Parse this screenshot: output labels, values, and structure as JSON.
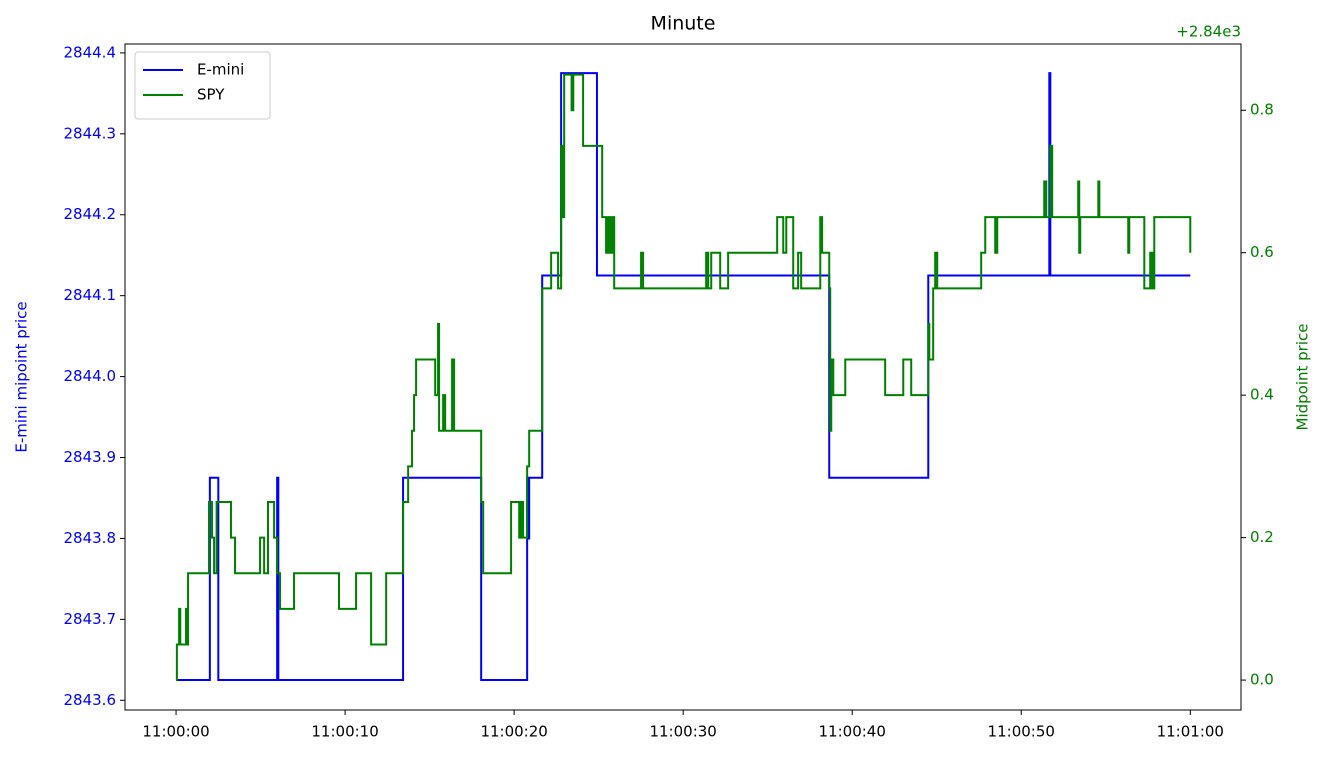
{
  "chart_data": {
    "type": "step",
    "title": "Minute",
    "ylabel": "E-mini mipoint price",
    "y2label": "Midpoint price",
    "y2_offset_text": "+2.84e3",
    "xlim": [
      -3.02,
      63.0
    ],
    "xticks": [
      {
        "value": 0,
        "label": "11:00:00"
      },
      {
        "value": 10,
        "label": "11:00:10"
      },
      {
        "value": 20,
        "label": "11:00:20"
      },
      {
        "value": 30,
        "label": "11:00:30"
      },
      {
        "value": 40,
        "label": "11:00:40"
      },
      {
        "value": 50,
        "label": "11:00:50"
      },
      {
        "value": 60,
        "label": "11:01:00"
      }
    ],
    "ylim": [
      2843.588,
      2844.411
    ],
    "yticks": [
      2843.6,
      2843.7,
      2843.8,
      2843.9,
      {
        "value": 2844.0,
        "label": "2844.0"
      },
      2844.1,
      2844.2,
      2844.3,
      2844.4
    ],
    "y2lim": [
      -0.042,
      0.893
    ],
    "y2ticks": [
      {
        "value": 0,
        "label": "0.0"
      },
      0.2,
      0.4,
      0.6,
      0.8
    ],
    "legend": "upper left",
    "series": [
      {
        "name": "E-mini",
        "color": "#0000ff",
        "axis": "y",
        "x": [
          0,
          2.0,
          2.5,
          5.98,
          6.05,
          13.43,
          18.05,
          20.77,
          20.83,
          20.89,
          21.66,
          22.78,
          24.9,
          38.64,
          44.5,
          51.66,
          51.72,
          60
        ],
        "values": [
          2843.625,
          2843.875,
          2843.625,
          2843.875,
          2843.625,
          2843.875,
          2843.625,
          2843.875,
          2843.8,
          2843.875,
          2844.125,
          2844.375,
          2844.125,
          2843.875,
          2844.125,
          2844.375,
          2844.125,
          2844.125
        ]
      },
      {
        "name": "SPY",
        "color": "#008000",
        "axis": "y2",
        "x": [
          0,
          0.05,
          0.18,
          0.25,
          0.59,
          0.65,
          0.71,
          1.95,
          2.13,
          2.25,
          2.4,
          3.25,
          3.49,
          4.97,
          5.21,
          5.44,
          5.8,
          5.98,
          6.15,
          6.98,
          9.64,
          10.65,
          11.54,
          12.43,
          13.43,
          13.73,
          13.96,
          14.08,
          14.2,
          15.33,
          15.5,
          15.56,
          15.8,
          15.92,
          16.33,
          16.45,
          18.05,
          18.17,
          19.82,
          20.3,
          20.41,
          20.53,
          20.77,
          20.89,
          21.66,
          22.19,
          22.6,
          22.78,
          22.84,
          22.96,
          23.4,
          23.5,
          24.08,
          25.21,
          25.44,
          25.56,
          25.68,
          25.8,
          25.92,
          27.51,
          27.63,
          31.36,
          31.48,
          31.66,
          32.19,
          32.66,
          35.56,
          35.92,
          36.1,
          36.51,
          36.8,
          36.98,
          38.11,
          38.22,
          38.64,
          38.7,
          38.76,
          38.88,
          39.59,
          41.95,
          43.02,
          43.49,
          44.5,
          44.56,
          44.79,
          44.91,
          45.03,
          47.63,
          47.87,
          48.46,
          48.58,
          51.36,
          51.48,
          51.72,
          51.83,
          53.37,
          53.43,
          53.49,
          54.56,
          54.62,
          56.33,
          56.39,
          57.28,
          57.63,
          57.75,
          57.87,
          60
        ],
        "values": [
          0,
          0.05,
          0.1,
          0.05,
          0.1,
          0.05,
          0.15,
          0.25,
          0.2,
          0.15,
          0.25,
          0.2,
          0.15,
          0.2,
          0.15,
          0.25,
          0.2,
          0.15,
          0.1,
          0.15,
          0.1,
          0.15,
          0.05,
          0.15,
          0.25,
          0.3,
          0.35,
          0.4,
          0.45,
          0.4,
          0.5,
          0.35,
          0.4,
          0.35,
          0.45,
          0.35,
          0.25,
          0.15,
          0.25,
          0.2,
          0.25,
          0.2,
          0.3,
          0.35,
          0.55,
          0.6,
          0.55,
          0.75,
          0.65,
          0.85,
          0.8,
          0.85,
          0.75,
          0.65,
          0.6,
          0.65,
          0.6,
          0.65,
          0.55,
          0.6,
          0.55,
          0.6,
          0.55,
          0.6,
          0.55,
          0.6,
          0.65,
          0.6,
          0.65,
          0.55,
          0.6,
          0.55,
          0.65,
          0.6,
          0.55,
          0.35,
          0.45,
          0.4,
          0.45,
          0.4,
          0.45,
          0.4,
          0.5,
          0.45,
          0.55,
          0.6,
          0.55,
          0.6,
          0.65,
          0.6,
          0.65,
          0.7,
          0.65,
          0.75,
          0.65,
          0.7,
          0.6,
          0.65,
          0.7,
          0.65,
          0.6,
          0.65,
          0.55,
          0.6,
          0.55,
          0.65,
          0.6
        ]
      }
    ]
  }
}
